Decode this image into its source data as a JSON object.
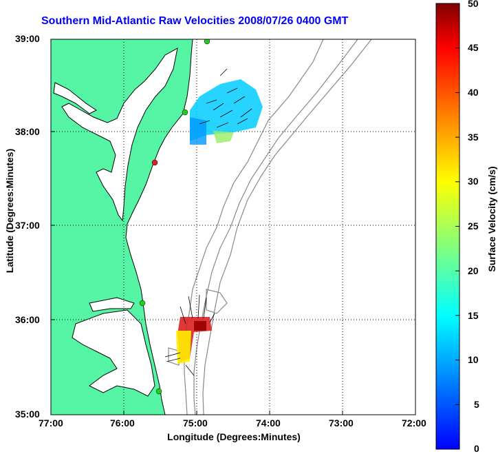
{
  "title": "Southern Mid-Atlantic Raw Velocities 2008/07/26 0400 GMT",
  "axes": {
    "xlabel": "Longitude (Degrees:Minutes)",
    "ylabel": "Latitude (Degrees:Minutes)",
    "xticks": [
      "77:00",
      "76:00",
      "75:00",
      "74:00",
      "73:00",
      "72:00"
    ],
    "yticks": [
      "39:00",
      "38:00",
      "37:00",
      "36:00",
      "35:00"
    ]
  },
  "colorbar": {
    "label": "Surface Velocity (cm/s)",
    "ticks": [
      "50",
      "45",
      "40",
      "35",
      "30",
      "25",
      "20",
      "15",
      "10",
      "5",
      "0"
    ],
    "range": [
      0,
      50
    ]
  },
  "colors": {
    "land": "#55f5a5",
    "water": "#ffffff",
    "bathymetry": "#888888",
    "title": "#0000ff",
    "station_active": "#22cc22",
    "station_inactive": "#dd2222"
  },
  "stations": [
    {
      "lon": -75.05,
      "lat": 38.97,
      "status": "active"
    },
    {
      "lon": -75.45,
      "lat": 38.25,
      "status": "active"
    },
    {
      "lon": -75.55,
      "lat": 37.85,
      "status": "inactive"
    },
    {
      "lon": -75.75,
      "lat": 36.25,
      "status": "active"
    },
    {
      "lon": -75.6,
      "lat": 35.2,
      "status": "active"
    }
  ]
}
